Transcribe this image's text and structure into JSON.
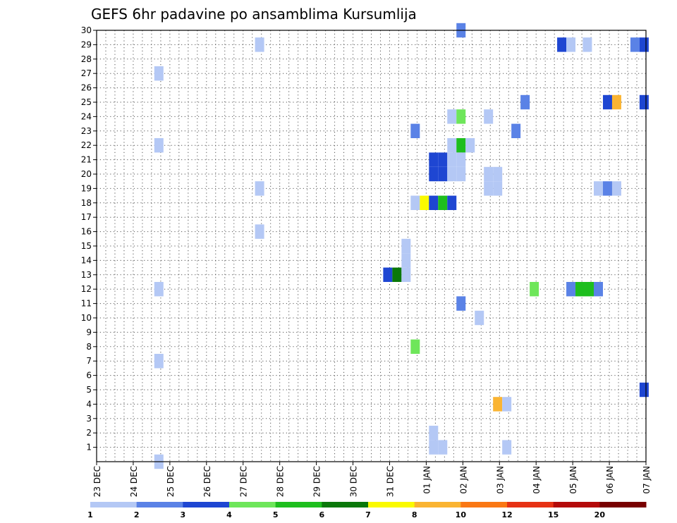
{
  "chart_data": {
    "type": "heatmap",
    "title": "GEFS 6hr padavine po ansamblima Kursumlija",
    "xlabel": "",
    "ylabel": "",
    "x_tick_labels": [
      "23 DEC",
      "24 DEC",
      "25 DEC",
      "26 DEC",
      "27 DEC",
      "28 DEC",
      "29 DEC",
      "30 DEC",
      "31 DEC",
      "01 JAN",
      "02 JAN",
      "03 JAN",
      "04 JAN",
      "05 JAN",
      "06 JAN",
      "07 JAN"
    ],
    "y_tick_labels": [
      "1",
      "2",
      "3",
      "4",
      "5",
      "6",
      "7",
      "8",
      "9",
      "10",
      "11",
      "12",
      "13",
      "14",
      "15",
      "16",
      "17",
      "18",
      "19",
      "20",
      "21",
      "22",
      "23",
      "24",
      "25",
      "26",
      "27",
      "28",
      "29",
      "30"
    ],
    "xlim": [
      0,
      15
    ],
    "ylim": [
      0,
      30
    ],
    "grid": true,
    "colorbar": {
      "tick_labels": [
        "1",
        "2",
        "3",
        "4",
        "5",
        "6",
        "7",
        "8",
        "10",
        "12",
        "15",
        "20"
      ],
      "colors": [
        "#b4c8f5",
        "#5a82e6",
        "#1e46d2",
        "#6ee65a",
        "#1ebe1e",
        "#0a780a",
        "#fafa00",
        "#fab432",
        "#fa7814",
        "#e63214",
        "#b40a0a",
        "#780000"
      ]
    },
    "cells": [
      {
        "t": 9.95,
        "m": 30,
        "v": 2
      },
      {
        "t": 4.45,
        "m": 29,
        "v": 1
      },
      {
        "t": 12.7,
        "m": 29,
        "v": 3
      },
      {
        "t": 12.95,
        "m": 29,
        "v": 1
      },
      {
        "t": 13.4,
        "m": 29,
        "v": 1
      },
      {
        "t": 14.7,
        "m": 29,
        "v": 2
      },
      {
        "t": 14.95,
        "m": 29,
        "v": 3
      },
      {
        "t": 1.7,
        "m": 27,
        "v": 1
      },
      {
        "t": 11.7,
        "m": 25,
        "v": 2
      },
      {
        "t": 13.95,
        "m": 25,
        "v": 3
      },
      {
        "t": 14.2,
        "m": 25,
        "v": 8
      },
      {
        "t": 14.95,
        "m": 25,
        "v": 3
      },
      {
        "t": 9.7,
        "m": 24,
        "v": 1
      },
      {
        "t": 9.95,
        "m": 24,
        "v": 4
      },
      {
        "t": 10.7,
        "m": 24,
        "v": 1
      },
      {
        "t": 8.7,
        "m": 23,
        "v": 2
      },
      {
        "t": 11.45,
        "m": 23,
        "v": 2
      },
      {
        "t": 1.7,
        "m": 22,
        "v": 1
      },
      {
        "t": 9.7,
        "m": 22,
        "v": 1
      },
      {
        "t": 9.95,
        "m": 22,
        "v": 5
      },
      {
        "t": 10.2,
        "m": 22,
        "v": 1
      },
      {
        "t": 9.2,
        "m": 21,
        "v": 3
      },
      {
        "t": 9.45,
        "m": 21,
        "v": 3
      },
      {
        "t": 9.7,
        "m": 21,
        "v": 1
      },
      {
        "t": 9.95,
        "m": 21,
        "v": 1
      },
      {
        "t": 9.2,
        "m": 20,
        "v": 3
      },
      {
        "t": 9.45,
        "m": 20,
        "v": 3
      },
      {
        "t": 9.7,
        "m": 20,
        "v": 1
      },
      {
        "t": 9.95,
        "m": 20,
        "v": 1
      },
      {
        "t": 10.7,
        "m": 20,
        "v": 1
      },
      {
        "t": 10.95,
        "m": 20,
        "v": 1
      },
      {
        "t": 4.45,
        "m": 19,
        "v": 1
      },
      {
        "t": 10.7,
        "m": 19,
        "v": 1
      },
      {
        "t": 10.95,
        "m": 19,
        "v": 1
      },
      {
        "t": 13.7,
        "m": 19,
        "v": 1
      },
      {
        "t": 13.95,
        "m": 19,
        "v": 2
      },
      {
        "t": 14.2,
        "m": 19,
        "v": 1
      },
      {
        "t": 8.7,
        "m": 18,
        "v": 1
      },
      {
        "t": 8.95,
        "m": 18,
        "v": 7
      },
      {
        "t": 9.2,
        "m": 18,
        "v": 3
      },
      {
        "t": 9.45,
        "m": 18,
        "v": 5
      },
      {
        "t": 9.7,
        "m": 18,
        "v": 3
      },
      {
        "t": 4.45,
        "m": 16,
        "v": 1
      },
      {
        "t": 8.45,
        "m": 15,
        "v": 1
      },
      {
        "t": 8.45,
        "m": 14,
        "v": 1
      },
      {
        "t": 7.95,
        "m": 13,
        "v": 3
      },
      {
        "t": 8.2,
        "m": 13,
        "v": 6
      },
      {
        "t": 8.45,
        "m": 13,
        "v": 1
      },
      {
        "t": 1.7,
        "m": 12,
        "v": 1
      },
      {
        "t": 11.95,
        "m": 12,
        "v": 4
      },
      {
        "t": 12.95,
        "m": 12,
        "v": 2
      },
      {
        "t": 13.2,
        "m": 12,
        "v": 5
      },
      {
        "t": 13.45,
        "m": 12,
        "v": 5
      },
      {
        "t": 13.7,
        "m": 12,
        "v": 2
      },
      {
        "t": 9.95,
        "m": 11,
        "v": 2
      },
      {
        "t": 10.45,
        "m": 10,
        "v": 1
      },
      {
        "t": 8.7,
        "m": 8,
        "v": 4
      },
      {
        "t": 1.7,
        "m": 7,
        "v": 1
      },
      {
        "t": 14.95,
        "m": 5,
        "v": 3
      },
      {
        "t": 10.95,
        "m": 4,
        "v": 8
      },
      {
        "t": 11.2,
        "m": 4,
        "v": 1
      },
      {
        "t": 9.2,
        "m": 2,
        "v": 1
      },
      {
        "t": 9.2,
        "m": 1,
        "v": 1
      },
      {
        "t": 9.45,
        "m": 1,
        "v": 1
      },
      {
        "t": 11.2,
        "m": 1,
        "v": 1
      },
      {
        "t": 1.7,
        "m": 0,
        "v": 1
      }
    ]
  }
}
